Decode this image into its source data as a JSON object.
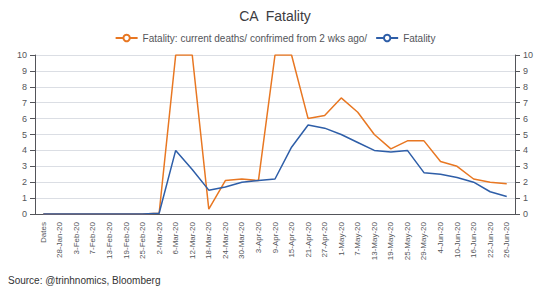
{
  "chart_data": {
    "type": "line",
    "title": "CA  Fatality",
    "annotations": [
      "Source: @trinhnomics, Bloomberg"
    ],
    "categories": [
      "Dates",
      "28-Jan-20",
      "3-Feb-20",
      "7-Feb-20",
      "13-Feb-20",
      "19-Feb-20",
      "25-Feb-20",
      "2-Mar-20",
      "6-Mar-20",
      "12-Mar-20",
      "18-Mar-20",
      "24-Mar-20",
      "30-Mar-20",
      "3-Apr-20",
      "9-Apr-20",
      "15-Apr-20",
      "21-Apr-20",
      "27-Apr-20",
      "1-May-20",
      "7-May-20",
      "13-May-20",
      "19-May-20",
      "25-May-20",
      "29-May-20",
      "4-Jun-20",
      "10-Jun-20",
      "16-Jun-20",
      "22-Jun-20",
      "26-Jun-20"
    ],
    "series": [
      {
        "name": "Fatality: current deaths/ confrimed from 2 wks ago/",
        "color": "#E87722",
        "values": [
          0.0,
          0.0,
          0.0,
          0.0,
          0.0,
          0.0,
          0.0,
          0.05,
          10.0,
          10.0,
          0.3,
          2.1,
          2.2,
          2.1,
          10.0,
          10.0,
          6.0,
          6.2,
          7.3,
          6.4,
          5.0,
          4.1,
          4.6,
          4.6,
          3.3,
          3.0,
          2.2,
          2.0,
          1.9
        ]
      },
      {
        "name": "Fatality",
        "color": "#2E5EA8",
        "values": [
          0.0,
          0.0,
          0.0,
          0.0,
          0.0,
          0.0,
          0.0,
          0.05,
          4.0,
          2.8,
          1.5,
          1.7,
          2.0,
          2.1,
          2.2,
          4.2,
          5.6,
          5.4,
          5.0,
          4.5,
          4.0,
          3.9,
          4.0,
          2.6,
          2.5,
          2.3,
          2.0,
          1.4,
          1.1
        ]
      }
    ],
    "ylim": [
      0,
      10
    ],
    "yticks": [
      0,
      1,
      2,
      3,
      4,
      5,
      6,
      7,
      8,
      9,
      10
    ],
    "y2lim": [
      0,
      10
    ],
    "y2ticks": [
      0,
      1,
      2,
      3,
      4,
      5,
      6,
      7,
      8,
      9,
      10
    ],
    "grid": true
  }
}
